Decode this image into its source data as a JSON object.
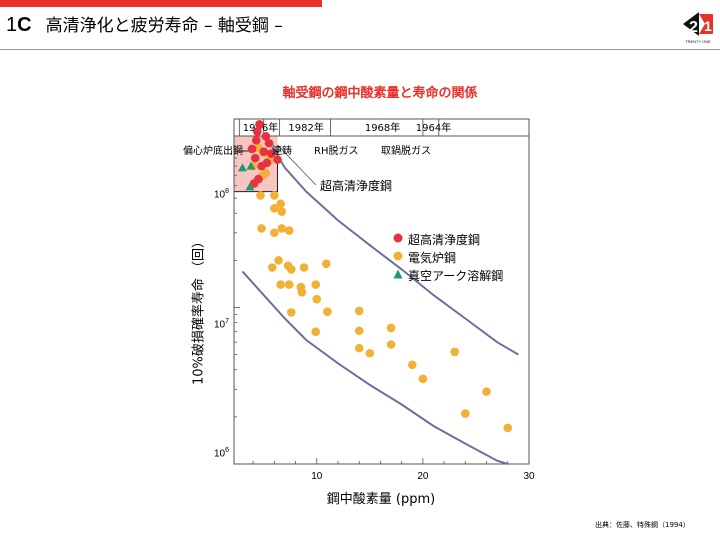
{
  "header": {
    "number": "1",
    "letter": "C",
    "title": "高清浄化と疲労寿命 – 軸受鋼 –",
    "logo_text": "TRENTY ONE"
  },
  "colors": {
    "accent": "#e8322c",
    "curve": "#6e6e9e",
    "orange": "#f2b134",
    "red": "#e5323c",
    "green": "#1e9a6e",
    "band": "#f7c6c2"
  },
  "source_note": "出典：佐藤、特殊鋼（1994）",
  "chart_data": {
    "type": "scatter",
    "title": "軸受鋼の鋼中酸素量と寿命の関係",
    "xlabel": "鋼中酸素量 (ppm)",
    "ylabel": "10%破損確率寿命 （回）",
    "x_scale": "linear",
    "y_scale": "log",
    "xlim": [
      2.2,
      30
    ],
    "ylim": [
      1000000,
      160000000
    ],
    "x_ticks": [
      10,
      20,
      30
    ],
    "y_ticks": [
      {
        "value": 1000000,
        "base": "10",
        "exp": "6"
      },
      {
        "value": 10000000,
        "base": "10",
        "exp": "7"
      },
      {
        "value": 100000000,
        "base": "10",
        "exp": "8"
      }
    ],
    "timeline": {
      "labels": [
        "1986年",
        "1982年",
        "1968年",
        "1964年"
      ],
      "label_x": [
        4.7,
        9.0,
        16.2,
        21.0
      ],
      "ticks": [
        2.7,
        5.0,
        6.5,
        11.3,
        20.0,
        21.5
      ],
      "processes": [
        "偏心炉底出鋼",
        "連鋳",
        "RH脱ガス",
        "取鍋脱ガス"
      ]
    },
    "annotation": "超高清浄度鋼",
    "legend": [
      "超高清浄度鋼",
      "電気炉鋼",
      "真空アーク溶解鋼"
    ],
    "series": [
      {
        "name": "超高清浄度鋼",
        "marker": "circle",
        "color": "#e5323c",
        "points": [
          [
            4.6,
            148000000
          ],
          [
            4.4,
            133000000
          ],
          [
            5.2,
            124000000
          ],
          [
            4.3,
            117000000
          ],
          [
            5.5,
            112000000
          ],
          [
            3.9,
            103000000
          ],
          [
            5.0,
            99000000
          ],
          [
            5.7,
            96000000
          ],
          [
            4.2,
            90000000
          ],
          [
            6.3,
            88000000
          ],
          [
            4.8,
            80000000
          ],
          [
            5.3,
            84000000
          ],
          [
            4.5,
            66000000
          ],
          [
            4.1,
            62000000
          ]
        ]
      },
      {
        "name": "電気炉鋼",
        "marker": "circle",
        "color": "#f2b134",
        "points": [
          [
            4.5,
            105000000
          ],
          [
            5.0,
            97000000
          ],
          [
            4.0,
            80000000
          ],
          [
            4.8,
            69000000
          ],
          [
            5.2,
            72000000
          ],
          [
            5.5,
            86000000
          ],
          [
            4.7,
            52000000
          ],
          [
            6.0,
            52000000
          ],
          [
            6.6,
            46000000
          ],
          [
            6.0,
            43000000
          ],
          [
            6.7,
            41000000
          ],
          [
            4.8,
            32000000
          ],
          [
            6.7,
            32000000
          ],
          [
            6.0,
            30000000
          ],
          [
            7.4,
            31000000
          ],
          [
            6.4,
            20000000
          ],
          [
            5.8,
            18000000
          ],
          [
            7.3,
            18500000
          ],
          [
            7.6,
            17500000
          ],
          [
            8.8,
            18000000
          ],
          [
            10.9,
            19000000
          ],
          [
            6.6,
            14000000
          ],
          [
            7.4,
            14000000
          ],
          [
            8.5,
            13500000
          ],
          [
            9.9,
            14000000
          ],
          [
            8.6,
            12500000
          ],
          [
            10.0,
            11300000
          ],
          [
            11.0,
            9400000
          ],
          [
            14.0,
            9500000
          ],
          [
            7.6,
            9300000
          ],
          [
            17.0,
            7400000
          ],
          [
            14.0,
            7100000
          ],
          [
            9.9,
            7000000
          ],
          [
            17.0,
            5800000
          ],
          [
            14.0,
            5500000
          ],
          [
            15.0,
            5100000
          ],
          [
            23.0,
            5200000
          ],
          [
            19.0,
            4300000
          ],
          [
            20.0,
            3500000
          ],
          [
            26.0,
            2900000
          ],
          [
            24.0,
            2100000
          ],
          [
            28.0,
            1700000
          ]
        ]
      },
      {
        "name": "真空アーク溶解鋼",
        "marker": "triangle",
        "color": "#1e9a6e",
        "points": [
          [
            3.0,
            78000000
          ],
          [
            3.8,
            80000000
          ],
          [
            3.7,
            59000000
          ]
        ]
      }
    ],
    "curves": [
      [
        [
          5.8,
          106000000
        ],
        [
          7,
          78000000
        ],
        [
          9,
          55000000
        ],
        [
          12,
          36000000
        ],
        [
          15,
          25000000
        ],
        [
          18,
          17500000
        ],
        [
          21,
          12000000
        ],
        [
          24,
          8500000
        ],
        [
          27,
          6000000
        ],
        [
          29,
          5000000
        ]
      ],
      [
        [
          3.0,
          17000000
        ],
        [
          5,
          12000000
        ],
        [
          7,
          8500000
        ],
        [
          9,
          6200000
        ],
        [
          12,
          4400000
        ],
        [
          15,
          3200000
        ],
        [
          18,
          2400000
        ],
        [
          21,
          1750000
        ],
        [
          24,
          1350000
        ],
        [
          27,
          1050000
        ],
        [
          28,
          1000000
        ]
      ]
    ]
  }
}
